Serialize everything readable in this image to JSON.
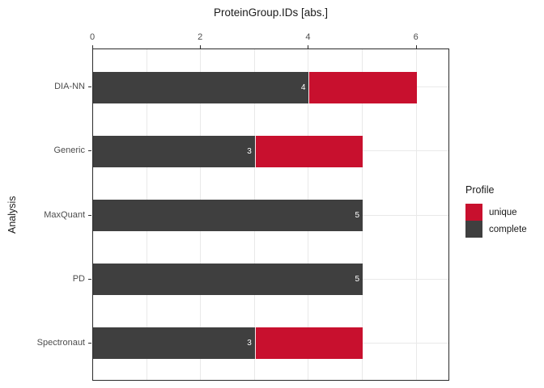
{
  "chart_data": {
    "type": "bar",
    "orientation": "horizontal",
    "stacked": true,
    "title": "ProteinGroup.IDs [abs.]",
    "ylabel": "Analysis",
    "xlabel": "",
    "categories": [
      "DIA-NN",
      "Generic",
      "MaxQuant",
      "PD",
      "Spectronaut"
    ],
    "series": [
      {
        "name": "complete",
        "color": "#3f3f3f",
        "values": [
          4,
          3,
          5,
          5,
          3
        ]
      },
      {
        "name": "unique",
        "color": "#c8102e",
        "values": [
          2,
          2,
          0,
          0,
          2
        ]
      }
    ],
    "bar_value_labels": [
      "4",
      "3",
      "5",
      "5",
      "3"
    ],
    "xlim": [
      0,
      6.62
    ],
    "xticks": [
      0,
      2,
      4,
      6
    ],
    "grid": {
      "vertical_every": 1,
      "horizontal_at_category_centers": true,
      "color": "#e9e9e9"
    },
    "legend": {
      "title": "Profile",
      "position": "right",
      "entries": [
        {
          "label": "unique",
          "color": "#c8102e"
        },
        {
          "label": "complete",
          "color": "#3f3f3f"
        }
      ]
    },
    "colors": {
      "panel_border": "#2b2b2b",
      "axis_text": "#4d4d4d",
      "title_text": "#1a1a1a",
      "bar_label_text": "#ffffff",
      "background": "#ffffff"
    }
  }
}
